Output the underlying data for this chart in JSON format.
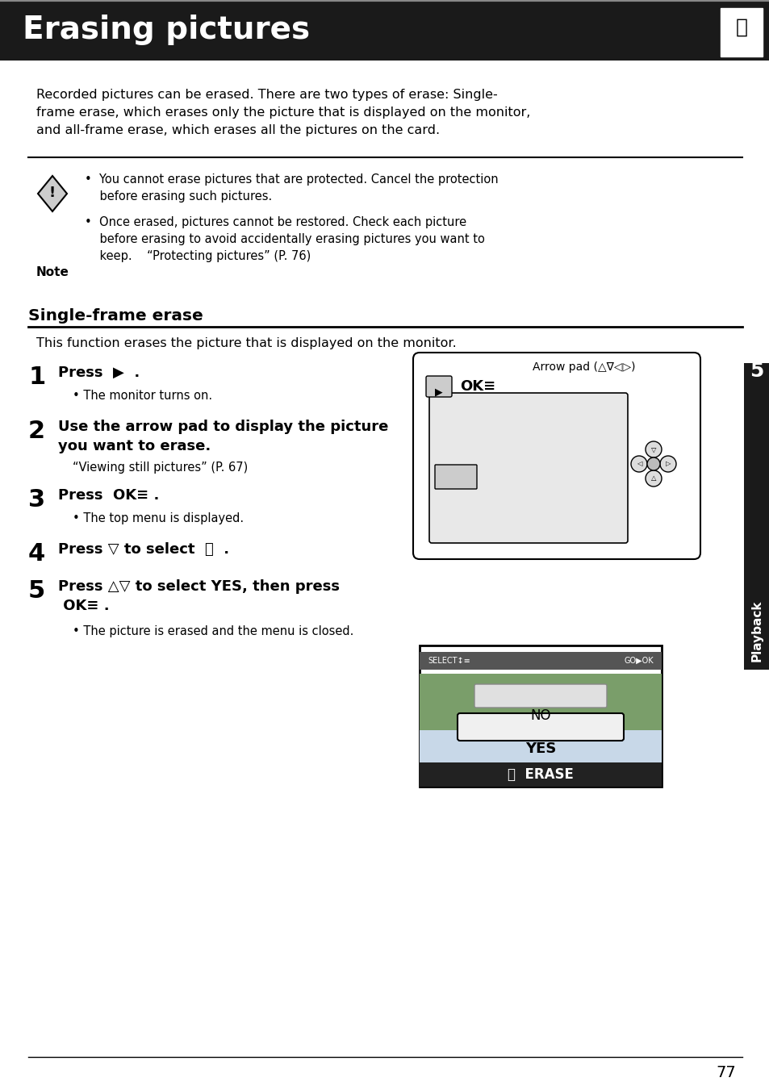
{
  "title": "Erasing pictures",
  "bg_color": "#ffffff",
  "header_bg": "#1a1a1a",
  "header_text_color": "#ffffff",
  "body_text_color": "#000000",
  "page_number": "77",
  "sidebar_bg": "#1a1a1a",
  "sidebar_text": "Playback",
  "sidebar_number": "5",
  "intro_text": "Recorded pictures can be erased. There are two types of erase: Single-\nframe erase, which erases only the picture that is displayed on the monitor,\nand all-frame erase, which erases all the pictures on the card.",
  "note_bullet1": "You cannot erase pictures that are protected. Cancel the protection\n    before erasing such pictures.",
  "note_bullet2": "Once erased, pictures cannot be restored. Check each picture\n    before erasing to avoid accidentally erasing pictures you want to\n    keep.    “Protecting pictures” (P. 76)",
  "section_title": "Single-frame erase",
  "section_desc": "This function erases the picture that is displayed on the monitor.",
  "step1_title": "Press",
  "step1_sub": "The monitor turns on.",
  "step2_title": "Use the arrow pad to display the picture\nyou want to erase.",
  "step2_sub": "“Viewing still pictures” (P. 67)",
  "step3_title": "Press  OK",
  "step3_sub": "The top menu is displayed.",
  "step4_title": "Press ∇ to select",
  "step5_title": "Press △∇ to select YES, then press\n OK",
  "step5_sub": "The picture is erased and the menu is closed.",
  "arrow_pad_label": "Arrow pad (△∇◁▷)"
}
